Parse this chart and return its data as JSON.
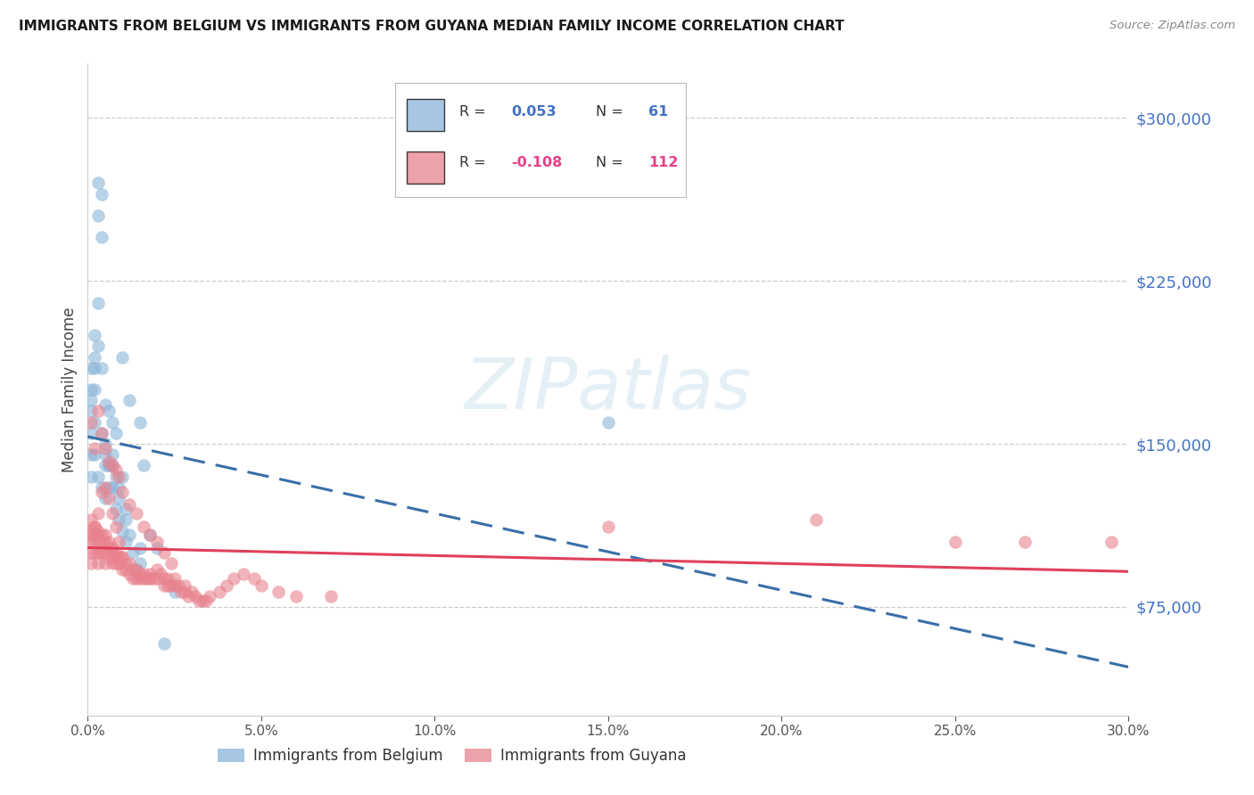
{
  "title": "IMMIGRANTS FROM BELGIUM VS IMMIGRANTS FROM GUYANA MEDIAN FAMILY INCOME CORRELATION CHART",
  "source": "Source: ZipAtlas.com",
  "ylabel": "Median Family Income",
  "right_ytick_labels": [
    "$75,000",
    "$150,000",
    "$225,000",
    "$300,000"
  ],
  "right_ytick_values": [
    75000,
    150000,
    225000,
    300000
  ],
  "belgium_color": "#8ab4d8",
  "guyana_color": "#e8828e",
  "belgium_line_color": "#3a6fa8",
  "guyana_line_color": "#e0405a",
  "watermark": "ZIPatlas",
  "xmin": 0.0,
  "xmax": 0.3,
  "ymin": 25000,
  "ymax": 325000,
  "belgium_R": 0.053,
  "belgium_N": 61,
  "guyana_R": -0.108,
  "guyana_N": 112,
  "belgium_x": [
    0.001,
    0.001,
    0.001,
    0.002,
    0.002,
    0.002,
    0.003,
    0.003,
    0.004,
    0.004,
    0.004,
    0.005,
    0.005,
    0.005,
    0.006,
    0.006,
    0.007,
    0.007,
    0.008,
    0.008,
    0.009,
    0.009,
    0.01,
    0.01,
    0.011,
    0.011,
    0.012,
    0.013,
    0.014,
    0.015,
    0.015,
    0.016,
    0.018,
    0.02,
    0.022,
    0.025,
    0.001,
    0.001,
    0.002,
    0.002,
    0.003,
    0.003,
    0.004,
    0.005,
    0.006,
    0.007,
    0.008,
    0.01,
    0.012,
    0.015,
    0.001,
    0.001,
    0.002,
    0.003,
    0.004,
    0.005,
    0.006,
    0.007,
    0.009,
    0.011,
    0.15
  ],
  "belgium_y": [
    155000,
    135000,
    170000,
    200000,
    185000,
    160000,
    270000,
    255000,
    265000,
    245000,
    155000,
    145000,
    140000,
    125000,
    140000,
    130000,
    145000,
    130000,
    135000,
    120000,
    125000,
    115000,
    135000,
    110000,
    115000,
    105000,
    108000,
    100000,
    92000,
    102000,
    95000,
    140000,
    108000,
    102000,
    58000,
    82000,
    185000,
    165000,
    190000,
    175000,
    215000,
    195000,
    185000,
    168000,
    165000,
    160000,
    155000,
    190000,
    170000,
    160000,
    175000,
    145000,
    145000,
    135000,
    130000,
    150000,
    140000,
    140000,
    130000,
    120000,
    160000
  ],
  "guyana_x": [
    0.001,
    0.001,
    0.001,
    0.001,
    0.001,
    0.002,
    0.002,
    0.002,
    0.002,
    0.003,
    0.003,
    0.003,
    0.003,
    0.003,
    0.004,
    0.004,
    0.004,
    0.005,
    0.005,
    0.005,
    0.005,
    0.006,
    0.006,
    0.006,
    0.007,
    0.007,
    0.007,
    0.008,
    0.008,
    0.008,
    0.009,
    0.009,
    0.01,
    0.01,
    0.011,
    0.011,
    0.012,
    0.012,
    0.013,
    0.013,
    0.014,
    0.014,
    0.015,
    0.015,
    0.016,
    0.016,
    0.017,
    0.018,
    0.018,
    0.019,
    0.02,
    0.02,
    0.021,
    0.022,
    0.022,
    0.023,
    0.023,
    0.024,
    0.025,
    0.025,
    0.026,
    0.027,
    0.028,
    0.028,
    0.029,
    0.03,
    0.031,
    0.032,
    0.033,
    0.034,
    0.035,
    0.038,
    0.04,
    0.042,
    0.045,
    0.048,
    0.05,
    0.055,
    0.06,
    0.07,
    0.001,
    0.002,
    0.003,
    0.004,
    0.005,
    0.006,
    0.007,
    0.008,
    0.009,
    0.01,
    0.012,
    0.014,
    0.016,
    0.018,
    0.02,
    0.022,
    0.024,
    0.15,
    0.21,
    0.25,
    0.27,
    0.295,
    0.001,
    0.002,
    0.003,
    0.004,
    0.005,
    0.006,
    0.007,
    0.008,
    0.009,
    0.01
  ],
  "guyana_y": [
    110000,
    105000,
    100000,
    95000,
    115000,
    112000,
    108000,
    105000,
    100000,
    110000,
    108000,
    105000,
    100000,
    95000,
    108000,
    105000,
    100000,
    108000,
    105000,
    100000,
    95000,
    105000,
    102000,
    98000,
    102000,
    100000,
    95000,
    100000,
    98000,
    95000,
    98000,
    95000,
    98000,
    92000,
    95000,
    92000,
    95000,
    90000,
    92000,
    88000,
    92000,
    88000,
    90000,
    88000,
    90000,
    88000,
    88000,
    90000,
    88000,
    88000,
    92000,
    88000,
    90000,
    88000,
    85000,
    88000,
    85000,
    85000,
    88000,
    85000,
    85000,
    82000,
    85000,
    82000,
    80000,
    82000,
    80000,
    78000,
    78000,
    78000,
    80000,
    82000,
    85000,
    88000,
    90000,
    88000,
    85000,
    82000,
    80000,
    80000,
    160000,
    148000,
    165000,
    155000,
    148000,
    142000,
    140000,
    138000,
    135000,
    128000,
    122000,
    118000,
    112000,
    108000,
    105000,
    100000,
    95000,
    112000,
    115000,
    105000,
    105000,
    105000,
    108000,
    112000,
    118000,
    128000,
    130000,
    125000,
    118000,
    112000,
    105000,
    98000
  ]
}
